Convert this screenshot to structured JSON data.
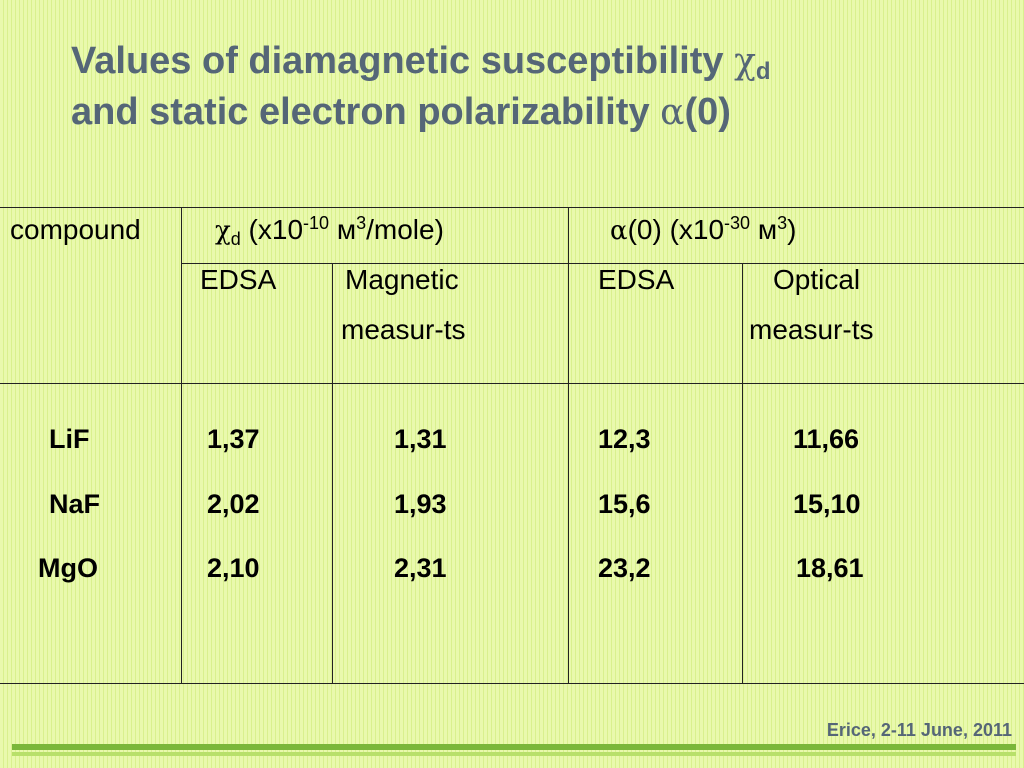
{
  "title": {
    "line1_text": "Values of diamagnetic susceptibility ",
    "line1_symbol": "χ",
    "line1_subscript": "d",
    "line2_text": "and static electron polarizability ",
    "line2_symbol": "α",
    "line2_suffix": "(0)"
  },
  "table": {
    "header": {
      "compound": "compound",
      "chi_symbol": "χ",
      "chi_subscript": "d",
      "chi_unit_a": " (x10",
      "chi_exp": "-10",
      "chi_unit_b": " м",
      "chi_unit_exp": "3",
      "chi_unit_c": "/mole)",
      "alpha_symbol": "α",
      "alpha_unit_a": "(0) (x10",
      "alpha_exp": "-30",
      "alpha_unit_b": " м",
      "alpha_unit_exp": "3",
      "alpha_unit_c": ")"
    },
    "subheaders": {
      "chi_edsa": "EDSA",
      "chi_magnetic_1": "Magnetic",
      "chi_magnetic_2": "measur-ts",
      "alpha_edsa": "EDSA",
      "alpha_optical_1": "Optical",
      "alpha_optical_2": "measur-ts"
    },
    "rows": [
      {
        "compound": "LiF",
        "chi_edsa": "1,37",
        "chi_magnetic": "1,31",
        "alpha_edsa": "12,3",
        "alpha_optical": "11,66"
      },
      {
        "compound": "NaF",
        "chi_edsa": "2,02",
        "chi_magnetic": "1,93",
        "alpha_edsa": "15,6",
        "alpha_optical": "15,10"
      },
      {
        "compound": "MgO",
        "chi_edsa": "2,10",
        "chi_magnetic": "2,31",
        "alpha_edsa": "23,2",
        "alpha_optical": "18,61"
      }
    ]
  },
  "footer": {
    "text": "Erice, 2-11 June, 2011"
  },
  "colors": {
    "title": "#556677",
    "background": "#e6f7a6",
    "footer_bar": "#7ab73a"
  }
}
